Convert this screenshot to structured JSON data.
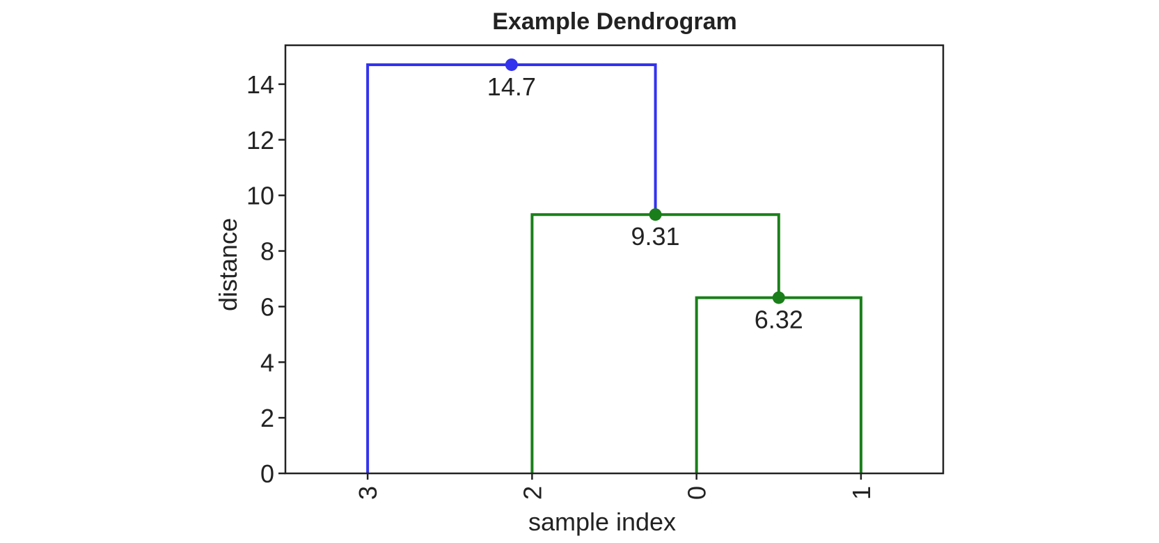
{
  "chart_data": {
    "type": "dendrogram",
    "title": "Example Dendrogram",
    "xlabel": "sample index",
    "ylabel": "distance",
    "ylim": [
      0,
      15.4
    ],
    "yticks": [
      0,
      2,
      4,
      6,
      8,
      10,
      12,
      14
    ],
    "leaves": [
      "3",
      "2",
      "0",
      "1"
    ],
    "grid": false,
    "links": [
      {
        "left": "0",
        "right": "1",
        "height": 6.32,
        "label": "6.32",
        "color": "#1a7f1a"
      },
      {
        "left": "2",
        "right": "(0,1)",
        "height": 9.31,
        "label": "9.31",
        "color": "#1a7f1a"
      },
      {
        "left": "3",
        "right": "(2,(0,1))",
        "height": 14.7,
        "label": "14.7",
        "color": "#3333ee"
      }
    ]
  }
}
